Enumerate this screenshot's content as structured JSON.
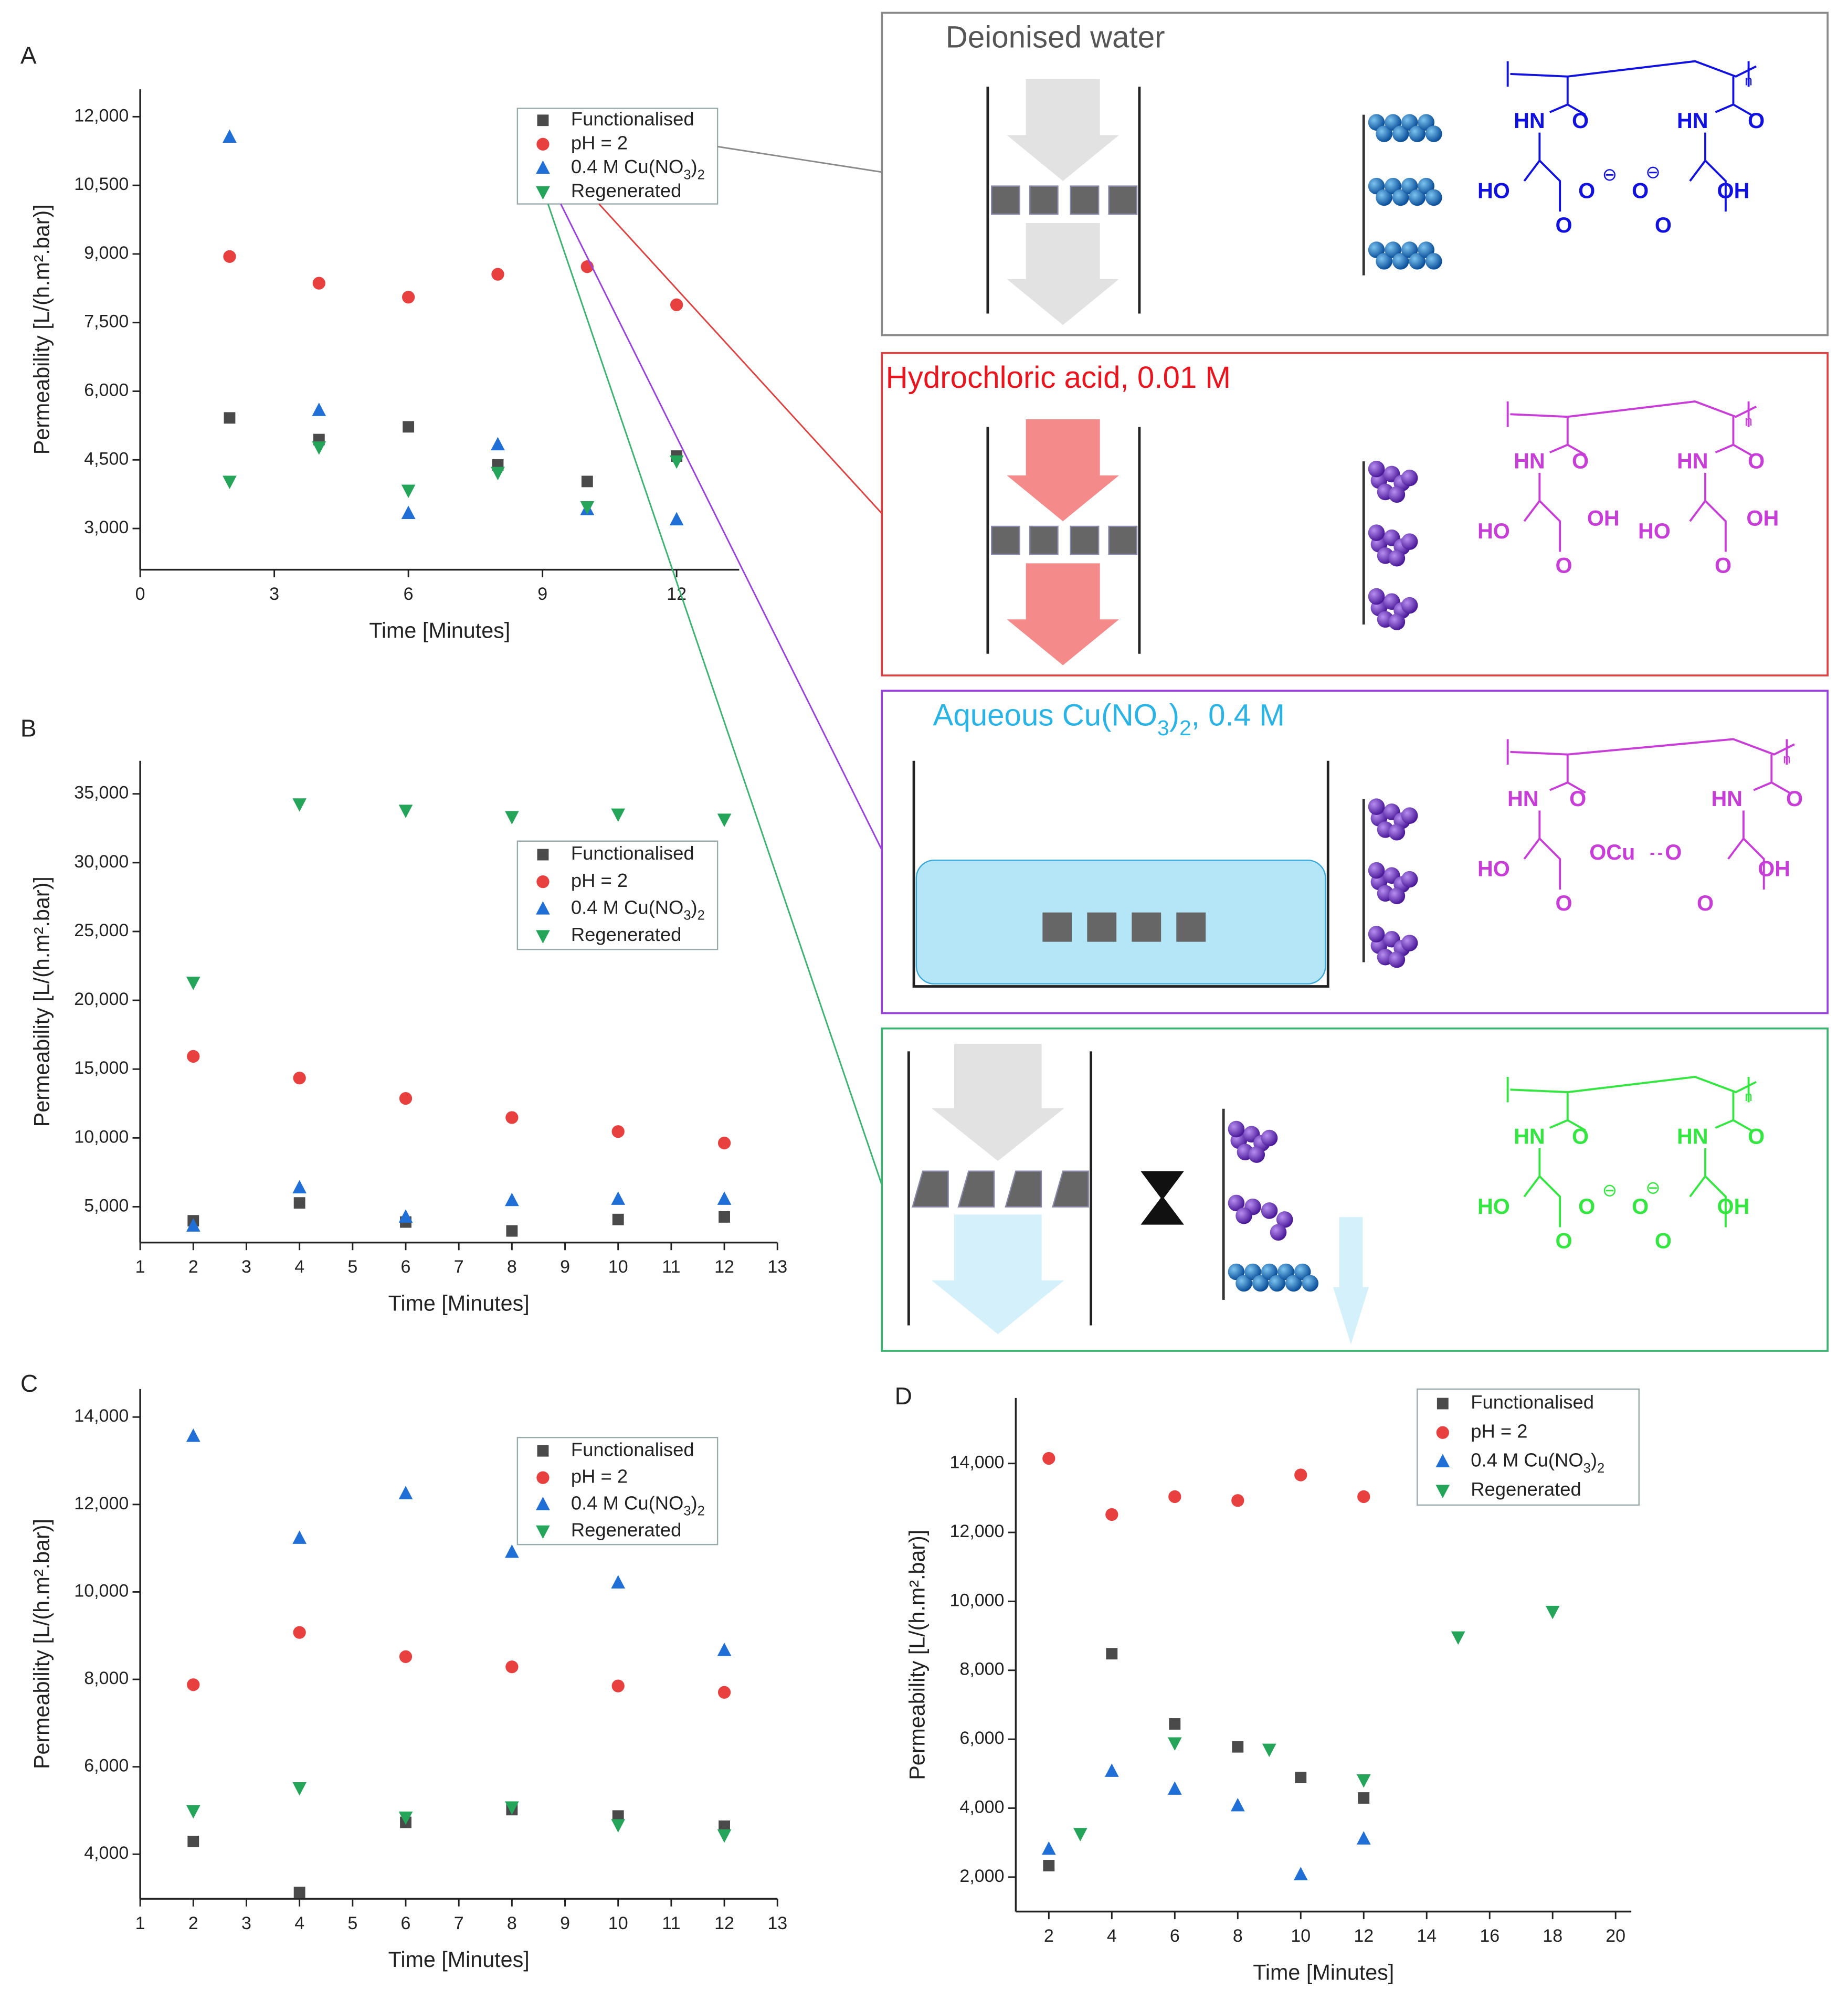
{
  "chart_data": [
    {
      "type": "scatter",
      "label": "A",
      "x_label": "Time [Minutes]",
      "y_label": "Permeability [L/(h.m².bar)]",
      "x": [
        2,
        4,
        6,
        8,
        10,
        12
      ],
      "xlim": [
        0,
        13.4
      ],
      "ylim": [
        2100,
        12600
      ],
      "xticks": [
        0,
        3,
        6,
        9,
        12
      ],
      "yticks": [
        {
          "value": 3000,
          "label": "3,000"
        },
        {
          "value": 4500,
          "label": "4,500"
        },
        {
          "value": 6000,
          "label": "6,000"
        },
        {
          "value": 7500,
          "label": "7,500"
        },
        {
          "value": 9000,
          "label": "9,000"
        },
        {
          "value": 10500,
          "label": "10,500"
        },
        {
          "value": 12000,
          "label": "12,000"
        }
      ],
      "series": [
        {
          "name": "Functionalised",
          "color": "#4a4a4a",
          "marker": "square",
          "values": [
            5417,
            4944,
            5222,
            4389,
            4028,
            4583
          ]
        },
        {
          "name": "pH = 2",
          "color": "#e8403f",
          "marker": "circle",
          "values": [
            8944,
            8361,
            8056,
            8556,
            8722,
            7889
          ]
        },
        {
          "name": "0.4 M Cu(NO3)2",
          "color": "#1f6fd6",
          "marker": "triangle-up",
          "values": [
            11556,
            5583,
            3333,
            4833,
            3417,
            3194
          ]
        },
        {
          "name": "Regenerated",
          "color": "#25a55a",
          "marker": "triangle-down",
          "values": [
            4028,
            4778,
            3833,
            4222,
            3472,
            4472
          ]
        }
      ]
    },
    {
      "type": "scatter",
      "label": "B",
      "x_label": "Time [Minutes]",
      "y_label": "Permeability [L/(h.m².bar)]",
      "x": [
        2,
        4,
        6,
        8,
        10,
        12
      ],
      "xlim": [
        1,
        13
      ],
      "ylim": [
        2400,
        37400
      ],
      "xticks": [
        1,
        2,
        3,
        4,
        5,
        6,
        7,
        8,
        9,
        10,
        11,
        12,
        13
      ],
      "yticks": [
        {
          "value": 5000,
          "label": "5,000"
        },
        {
          "value": 10000,
          "label": "10,000"
        },
        {
          "value": 15000,
          "label": "15,000"
        },
        {
          "value": 20000,
          "label": "20,000"
        },
        {
          "value": 25000,
          "label": "25,000"
        },
        {
          "value": 30000,
          "label": "30,000"
        },
        {
          "value": 35000,
          "label": "35,000"
        }
      ],
      "series": [
        {
          "name": "Functionalised",
          "color": "#4a4a4a",
          "marker": "square",
          "values": [
            3981,
            5278,
            3889,
            3241,
            4074,
            4259
          ]
        },
        {
          "name": "pH = 2",
          "color": "#e8403f",
          "marker": "circle",
          "values": [
            15926,
            14352,
            12870,
            11481,
            10463,
            9630
          ]
        },
        {
          "name": "0.4 M Cu(NO3)2",
          "color": "#1f6fd6",
          "marker": "triangle-up",
          "values": [
            3611,
            6389,
            4259,
            5463,
            5556,
            5556
          ]
        },
        {
          "name": "Regenerated",
          "color": "#25a55a",
          "marker": "triangle-down",
          "values": [
            21296,
            34259,
            33796,
            33333,
            33519,
            33148
          ]
        }
      ]
    },
    {
      "type": "scatter",
      "label": "C",
      "x_label": "Time [Minutes]",
      "y_label": "Permeability [L/(h.m².bar)]",
      "x": [
        2,
        4,
        6,
        8,
        10,
        12
      ],
      "xlim": [
        1,
        13
      ],
      "ylim": [
        2980,
        14640
      ],
      "xticks": [
        1,
        2,
        3,
        4,
        5,
        6,
        7,
        8,
        9,
        10,
        11,
        12,
        13
      ],
      "yticks": [
        {
          "value": 4000,
          "label": "4,000"
        },
        {
          "value": 6000,
          "label": "6,000"
        },
        {
          "value": 8000,
          "label": "8,000"
        },
        {
          "value": 10000,
          "label": "10,000"
        },
        {
          "value": 12000,
          "label": "12,000"
        },
        {
          "value": 14000,
          "label": "14,000"
        }
      ],
      "series": [
        {
          "name": "Functionalised",
          "color": "#4a4a4a",
          "marker": "square",
          "values": [
            4292,
            3125,
            4729,
            5020,
            4875,
            4641
          ]
        },
        {
          "name": "pH = 2",
          "color": "#e8403f",
          "marker": "circle",
          "values": [
            7878,
            9073,
            8519,
            8286,
            7849,
            7703
          ]
        },
        {
          "name": "0.4 M Cu(NO3)2",
          "color": "#1f6fd6",
          "marker": "triangle-up",
          "values": [
            13563,
            11230,
            12251,
            10910,
            10210,
            8665
          ]
        },
        {
          "name": "Regenerated",
          "color": "#25a55a",
          "marker": "triangle-down",
          "values": [
            4991,
            5516,
            4845,
            5079,
            4671,
            4437
          ]
        }
      ]
    },
    {
      "type": "scatter",
      "label": "D",
      "x_label": "Time [Minutes]",
      "y_label": "Permeability [L/(h.m².bar)]",
      "xlim": [
        0.95,
        20.5
      ],
      "ylim": [
        1000,
        15900
      ],
      "xticks": [
        2,
        4,
        6,
        8,
        10,
        12,
        14,
        16,
        18,
        20
      ],
      "yticks": [
        {
          "value": 2000,
          "label": "2,000"
        },
        {
          "value": 4000,
          "label": "4,000"
        },
        {
          "value": 6000,
          "label": "6,000"
        },
        {
          "value": 8000,
          "label": "8,000"
        },
        {
          "value": 10000,
          "label": "10,000"
        },
        {
          "value": 12000,
          "label": "12,000"
        },
        {
          "value": 14000,
          "label": "14,000"
        }
      ],
      "series": [
        {
          "name": "Functionalised",
          "color": "#4a4a4a",
          "marker": "square",
          "x": [
            2,
            4,
            6,
            8,
            10,
            12
          ],
          "values": [
            2333,
            8481,
            6444,
            5778,
            4889,
            4296
          ]
        },
        {
          "name": "pH = 2",
          "color": "#e8403f",
          "marker": "circle",
          "x": [
            2,
            4,
            6,
            8,
            10,
            12
          ],
          "values": [
            14148,
            12519,
            13037,
            12926,
            13667,
            13037
          ]
        },
        {
          "name": "0.4 M Cu(NO3)2",
          "color": "#1f6fd6",
          "marker": "triangle-up",
          "x": [
            2,
            4,
            6,
            8,
            10,
            12
          ],
          "values": [
            2815,
            5074,
            4556,
            4074,
            2074,
            3111
          ]
        },
        {
          "name": "Regenerated",
          "color": "#25a55a",
          "marker": "triangle-down",
          "x": [
            3,
            6,
            9,
            12,
            15,
            18
          ],
          "values": [
            3259,
            5889,
            5704,
            4815,
            8963,
            9704
          ]
        }
      ]
    }
  ],
  "diagram": {
    "panels": [
      {
        "title": "Deionised water",
        "title_color": "#555555",
        "border": "#8a8a8a",
        "color": "#1010e0",
        "labels": [
          "n",
          "HN",
          "O",
          "HN",
          "O",
          "HO",
          "O",
          "O",
          "⊖",
          "⊖",
          "O",
          "O",
          "OH"
        ]
      },
      {
        "title": "Hydrochloric acid, 0.01 M",
        "title_color": "#e8141e",
        "border": "#e04040",
        "color": "#c83cd8",
        "labels": [
          "n",
          "HN",
          "O",
          "HN",
          "O",
          "HO",
          "OH",
          "O",
          "HO",
          "OH",
          "O"
        ]
      },
      {
        "title": "Aqueous Cu(NO3)2, 0.4 M",
        "title_color": "#2ab4e6",
        "border": "#9b40e0",
        "color": "#c83cd8",
        "labels": [
          "n",
          "HN",
          "O",
          "HN",
          "O",
          "HO",
          "OCu",
          "O",
          "O",
          "O",
          "OH"
        ]
      },
      {
        "border": "#3cb371",
        "color": "#33e640",
        "labels": [
          "n",
          "HN",
          "O",
          "HN",
          "O",
          "HO",
          "O",
          "O",
          "⊖",
          "⊖",
          "O",
          "O",
          "OH"
        ]
      }
    ]
  }
}
